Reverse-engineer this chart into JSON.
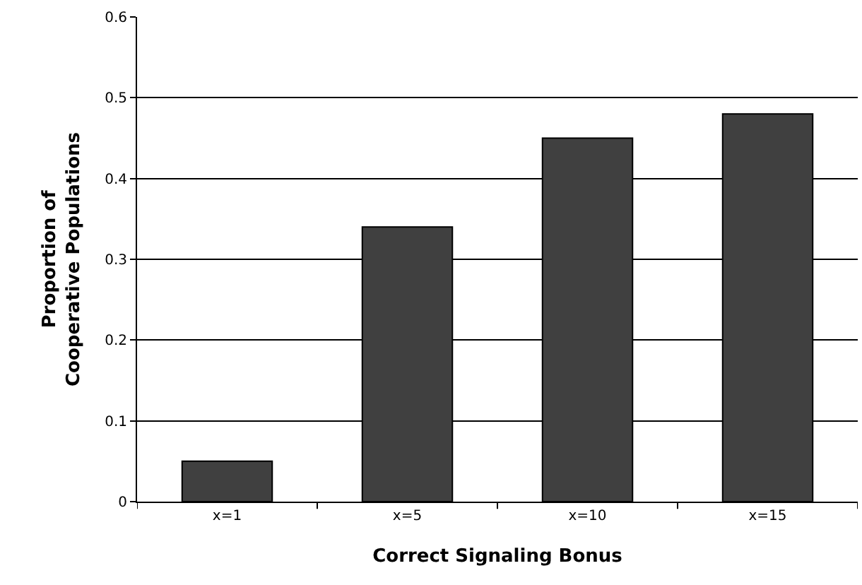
{
  "chart_data": {
    "type": "bar",
    "xlabel": "Correct Signaling Bonus",
    "ylabel": "Proportion of\nCooperative Populations",
    "categories": [
      "x=1",
      "x=5",
      "x=10",
      "x=15"
    ],
    "values": [
      0.05,
      0.34,
      0.45,
      0.48
    ],
    "color": "#404040",
    "ylim": [
      0,
      0.6
    ],
    "yticks": [
      0,
      0.1,
      0.2,
      0.3,
      0.4,
      0.5,
      0.6
    ],
    "grid": "y"
  }
}
